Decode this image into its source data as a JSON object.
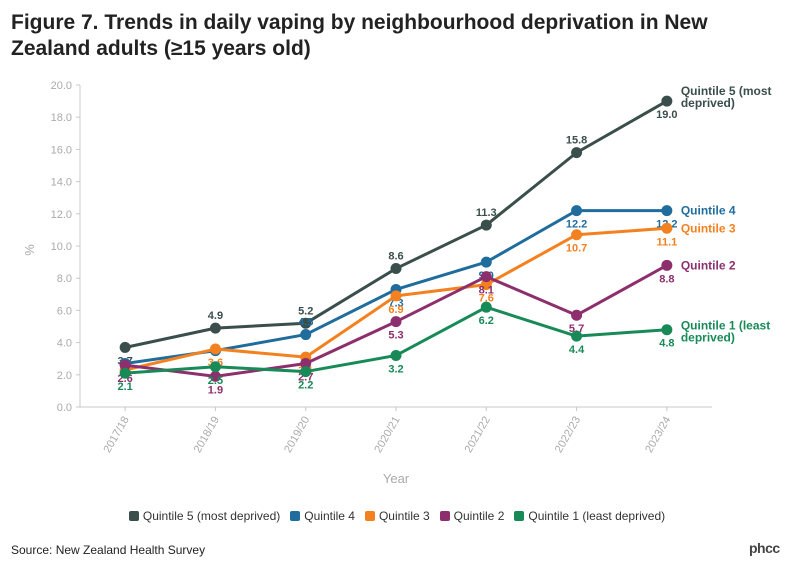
{
  "title": "Figure 7. Trends in daily vaping by neighbourhood deprivation in New Zealand adults (≥15 years old)",
  "source": "Source: New Zealand Health Survey",
  "logo": "phcc",
  "chart_data": {
    "type": "line",
    "xlabel": "Year",
    "ylabel": "%",
    "ylim": [
      0,
      20
    ],
    "yticks": [
      "0.0",
      "2.0",
      "4.0",
      "6.0",
      "8.0",
      "10.0",
      "12.0",
      "14.0",
      "16.0",
      "18.0",
      "20.0"
    ],
    "categories": [
      "2017/18",
      "2018/19",
      "2019/20",
      "2020/21",
      "2021/22",
      "2022/23",
      "2023/24"
    ],
    "series": [
      {
        "name": "Quintile 5 (most deprived)",
        "end_label": [
          "Quintile 5 (most",
          "deprived)"
        ],
        "color": "#3a4e4c",
        "values": [
          3.7,
          4.9,
          5.2,
          8.6,
          11.3,
          15.8,
          19.0
        ],
        "labels": [
          "3.7",
          "4.9",
          "5.2",
          "8.6",
          "11.3",
          "15.8",
          "19.0"
        ]
      },
      {
        "name": "Quintile 4",
        "end_label": [
          "Quintile 4"
        ],
        "color": "#1f6c9d",
        "values": [
          2.7,
          3.5,
          4.5,
          7.3,
          9.0,
          12.2,
          12.2
        ],
        "labels": [
          "",
          "",
          "4.5",
          "7.3",
          "9.0",
          "12.2",
          "12.2"
        ]
      },
      {
        "name": "Quintile 3",
        "end_label": [
          "Quintile 3"
        ],
        "color": "#f48120",
        "values": [
          2.3,
          3.6,
          3.1,
          6.9,
          7.6,
          10.7,
          11.1
        ],
        "labels": [
          "",
          "3.6",
          "3.1",
          "6.9",
          "7.6",
          "10.7",
          "11.1"
        ]
      },
      {
        "name": "Quintile 2",
        "end_label": [
          "Quintile 2"
        ],
        "color": "#8d2f6c",
        "values": [
          2.6,
          1.9,
          2.7,
          5.3,
          8.1,
          5.7,
          8.8
        ],
        "labels": [
          "2.6",
          "1.9",
          "2.7",
          "5.3",
          "8.1",
          "5.7",
          "8.8"
        ]
      },
      {
        "name": "Quintile 1 (least deprived)",
        "end_label": [
          "Quintile 1 (least",
          "deprived)"
        ],
        "color": "#178a57",
        "values": [
          2.1,
          2.5,
          2.2,
          3.2,
          6.2,
          4.4,
          4.8
        ],
        "labels": [
          "2.1",
          "2.5",
          "2.2",
          "3.2",
          "6.2",
          "4.4",
          "4.8"
        ]
      }
    ]
  }
}
